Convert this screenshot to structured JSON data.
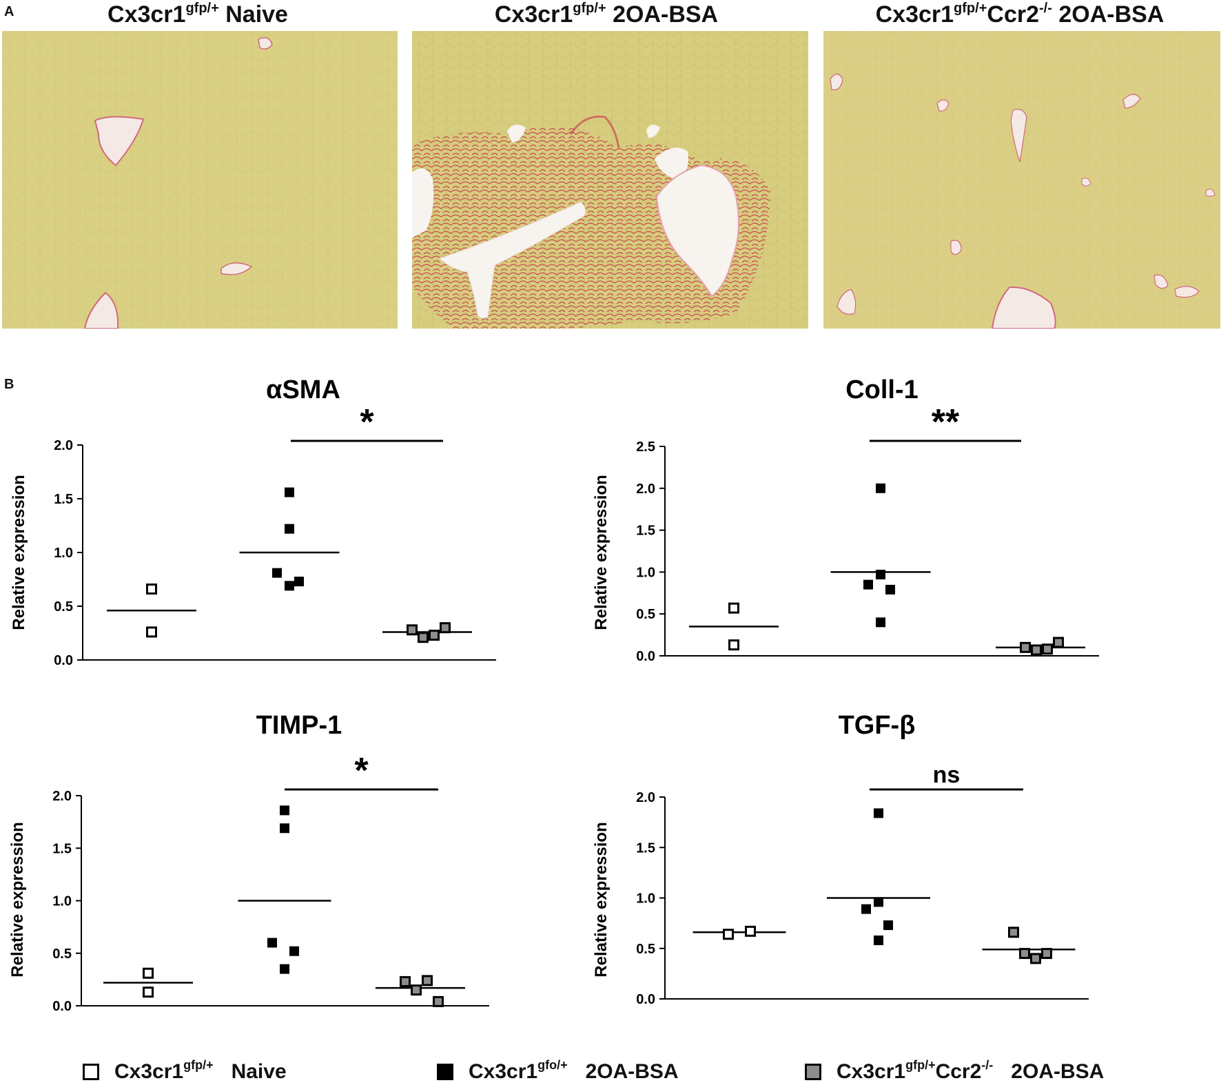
{
  "panel_a": {
    "letter": "A",
    "images": [
      {
        "base": "Cx3cr1",
        "sup": "gfp/+",
        "rest": " Naive"
      },
      {
        "base": "Cx3cr1",
        "sup": "gfp/+",
        "rest": " 2OA-BSA"
      },
      {
        "base": "Cx3cr1",
        "sup": "gfp/+",
        "rest": "Ccr2",
        "sup2": "-/-",
        "rest2": " 2OA-BSA"
      }
    ]
  },
  "panel_b": {
    "letter": "B"
  },
  "colors": {
    "stain_background": "#d9d083",
    "collagen_stain": "#c8334a",
    "vessel": "#f6ece8",
    "open_marker": "#ffffff",
    "filled_marker": "#000000",
    "gray_marker": "#8c8c8c"
  },
  "chart_data": [
    {
      "type": "scatter",
      "title": "αSMA",
      "ylabel": "Relative expression",
      "ylim": [
        0,
        2.0
      ],
      "yticks": [
        "0.0",
        "0.5",
        "1.0",
        "1.5",
        "2.0"
      ],
      "groups": [
        {
          "name": "Cx3cr1gfp/+ Naive",
          "marker": "open",
          "values": [
            0.66,
            0.26
          ],
          "mean": 0.46
        },
        {
          "name": "Cx3cr1gfo/+ 2OA-BSA",
          "marker": "filled",
          "values": [
            1.56,
            1.22,
            0.81,
            0.73,
            0.69
          ],
          "mean": 1.0
        },
        {
          "name": "Cx3cr1gfp/+Ccr2-/- 2OA-BSA",
          "marker": "gray",
          "values": [
            0.28,
            0.21,
            0.23,
            0.3
          ],
          "mean": 0.26
        }
      ],
      "significance": {
        "label": "*",
        "between": [
          1,
          2
        ]
      }
    },
    {
      "type": "scatter",
      "title": "Coll-1",
      "ylabel": "Relative expression",
      "ylim": [
        0,
        2.5
      ],
      "yticks": [
        "0.0",
        "0.5",
        "1.0",
        "1.5",
        "2.0",
        "2.5"
      ],
      "groups": [
        {
          "name": "Cx3cr1gfp/+ Naive",
          "marker": "open",
          "values": [
            0.57,
            0.13
          ],
          "mean": 0.35
        },
        {
          "name": "Cx3cr1gfo/+ 2OA-BSA",
          "marker": "filled",
          "values": [
            2.0,
            0.97,
            0.85,
            0.79,
            0.4
          ],
          "mean": 1.0
        },
        {
          "name": "Cx3cr1gfp/+Ccr2-/- 2OA-BSA",
          "marker": "gray",
          "values": [
            0.1,
            0.07,
            0.08,
            0.16
          ],
          "mean": 0.1
        }
      ],
      "significance": {
        "label": "**",
        "between": [
          1,
          2
        ]
      }
    },
    {
      "type": "scatter",
      "title": "TIMP-1",
      "ylabel": "Relative expression",
      "ylim": [
        0,
        2.0
      ],
      "yticks": [
        "0.0",
        "0.5",
        "1.0",
        "1.5",
        "2.0"
      ],
      "groups": [
        {
          "name": "Cx3cr1gfp/+ Naive",
          "marker": "open",
          "values": [
            0.31,
            0.13
          ],
          "mean": 0.22
        },
        {
          "name": "Cx3cr1gfo/+ 2OA-BSA",
          "marker": "filled",
          "values": [
            1.86,
            1.69,
            0.6,
            0.52,
            0.35
          ],
          "mean": 1.0
        },
        {
          "name": "Cx3cr1gfp/+Ccr2-/- 2OA-BSA",
          "marker": "gray",
          "values": [
            0.23,
            0.15,
            0.24,
            0.04
          ],
          "mean": 0.17
        }
      ],
      "significance": {
        "label": "*",
        "between": [
          1,
          2
        ]
      }
    },
    {
      "type": "scatter",
      "title": "TGF-β",
      "ylabel": "Relative expression",
      "ylim": [
        0,
        2.0
      ],
      "yticks": [
        "0.0",
        "0.5",
        "1.0",
        "1.5",
        "2.0"
      ],
      "groups": [
        {
          "name": "Cx3cr1gfp/+ Naive",
          "marker": "open",
          "values": [
            0.64,
            0.67
          ],
          "mean": 0.66
        },
        {
          "name": "Cx3cr1gfo/+ 2OA-BSA",
          "marker": "filled",
          "values": [
            1.84,
            0.96,
            0.89,
            0.73,
            0.58
          ],
          "mean": 1.0
        },
        {
          "name": "Cx3cr1gfp/+Ccr2-/- 2OA-BSA",
          "marker": "gray",
          "values": [
            0.66,
            0.45,
            0.4,
            0.45
          ],
          "mean": 0.49
        }
      ],
      "significance": {
        "label": "ns",
        "between": [
          1,
          2
        ]
      }
    }
  ],
  "legend": [
    {
      "marker": "open",
      "base": "Cx3cr1",
      "sup": "gfp/+",
      "rest": "Naive"
    },
    {
      "marker": "filled",
      "base": "Cx3cr1",
      "sup": "gfo/+",
      "rest": "2OA-BSA"
    },
    {
      "marker": "gray",
      "base": "Cx3cr1",
      "sup": "gfp/+",
      "base2": "Ccr2",
      "sup2": "-/-",
      "rest": "2OA-BSA"
    }
  ]
}
